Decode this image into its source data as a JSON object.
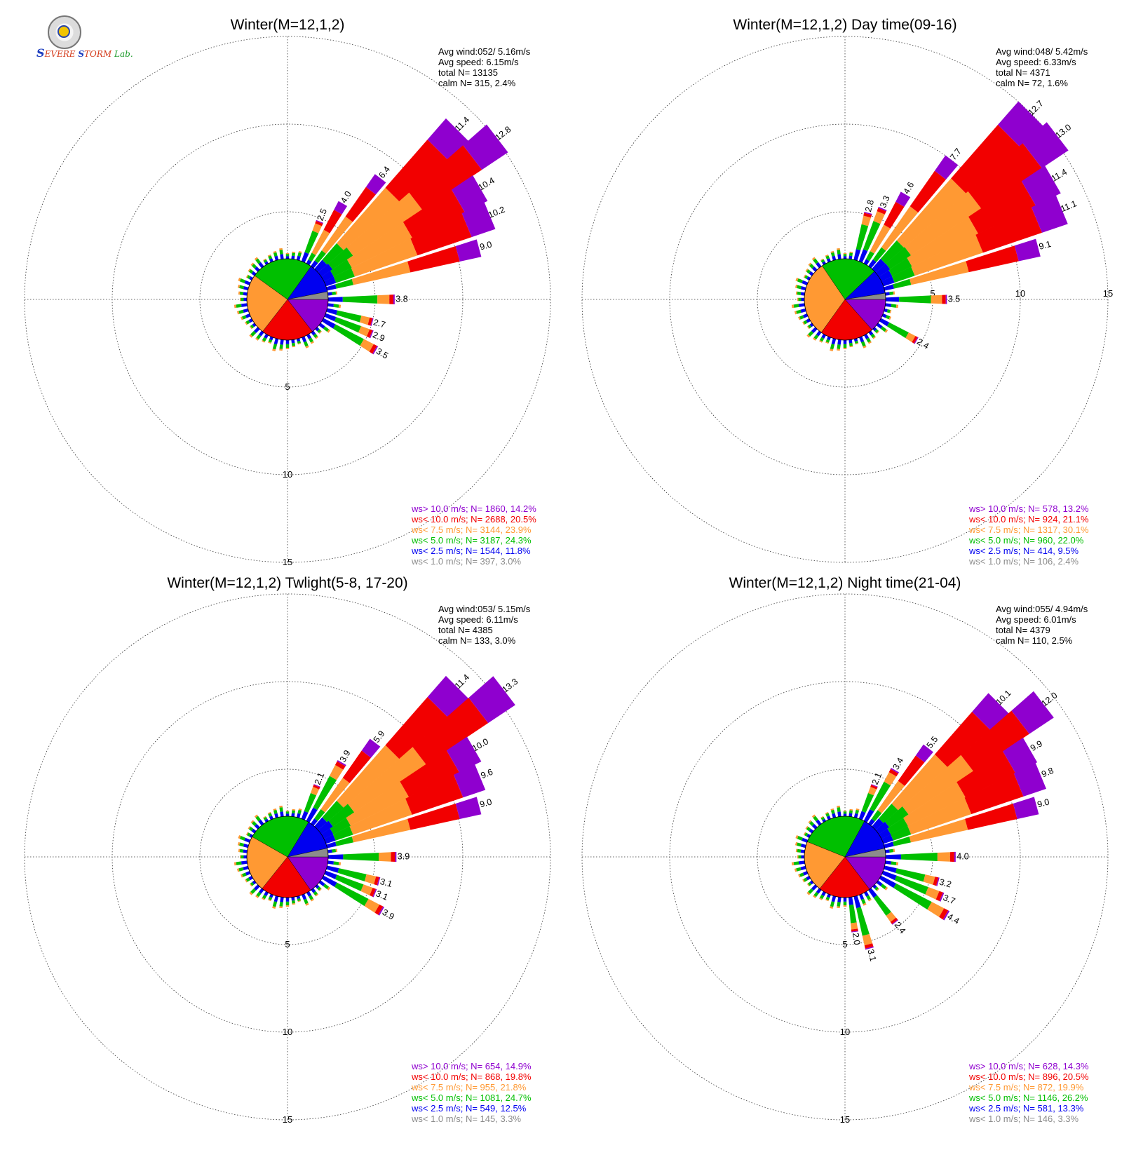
{
  "logo": {
    "big": "S",
    "severe": "EVERE",
    "storm": "TORM",
    "lab": "Lab."
  },
  "category_colors": [
    "#8f00cf",
    "#f20000",
    "#ff9933",
    "#00bf00",
    "#0000f0",
    "#8c8c8c"
  ],
  "chart_data": [
    {
      "type": "wind-rose",
      "title": "Winter(M=12,1,2)",
      "stats": [
        "Avg wind:052/ 5.16m/s",
        "Avg speed: 6.15m/s",
        "total N=       13135",
        "calm N=    315,   2.4%"
      ],
      "rings": [
        5,
        10,
        15
      ],
      "ring_labels_side": "bottom",
      "petals": [
        {
          "dir": 22.5,
          "label": "2.5",
          "total": 2.5
        },
        {
          "dir": 30,
          "label": "4.0",
          "total": 4.0
        },
        {
          "dir": 37.5,
          "label": "6.4",
          "total": 6.4
        },
        {
          "dir": 45,
          "label": "11.4",
          "total": 11.4
        },
        {
          "dir": 52.5,
          "label": "12.8",
          "total": 12.8
        },
        {
          "dir": 60,
          "label": "10.4",
          "total": 10.4
        },
        {
          "dir": 67.5,
          "label": "10.2",
          "total": 10.2
        },
        {
          "dir": 75,
          "label": "9.0",
          "total": 9.0
        },
        {
          "dir": 90,
          "label": "3.8",
          "total": 3.8
        },
        {
          "dir": 105,
          "label": "2.7",
          "total": 2.7
        },
        {
          "dir": 112.5,
          "label": "2.9",
          "total": 2.9
        },
        {
          "dir": 120,
          "label": "3.5",
          "total": 3.5
        }
      ],
      "legend": [
        "ws> 10.0 m/s; N=   1860,  14.2%",
        "ws< 10.0 m/s; N=   2688,  20.5%",
        "ws<  7.5 m/s; N=   3144,  23.9%",
        "ws<  5.0 m/s; N=   3187,  24.3%",
        "ws<  2.5 m/s; N=   1544,  11.8%",
        "ws<  1.0 m/s; N=    397,   3.0%"
      ],
      "speed_pie": [
        14.2,
        20.5,
        23.9,
        24.3,
        11.8,
        3.0
      ]
    },
    {
      "type": "wind-rose",
      "title": "Winter(M=12,1,2) Day time(09-16)",
      "stats": [
        "Avg wind:048/ 5.42m/s",
        "Avg speed: 6.33m/s",
        "total N=        4371",
        "calm N=     72,   1.6%"
      ],
      "rings": [
        5,
        10,
        15
      ],
      "ring_labels_side": "right",
      "petals": [
        {
          "dir": 15,
          "label": "2.8",
          "total": 2.8
        },
        {
          "dir": 22.5,
          "label": "3.3",
          "total": 3.3
        },
        {
          "dir": 30,
          "label": "4.6",
          "total": 4.6
        },
        {
          "dir": 37.5,
          "label": "7.7",
          "total": 7.7
        },
        {
          "dir": 45,
          "label": "12.7",
          "total": 12.7
        },
        {
          "dir": 52.5,
          "label": "13.0",
          "total": 13.0
        },
        {
          "dir": 60,
          "label": "11.4",
          "total": 11.4
        },
        {
          "dir": 67.5,
          "label": "11.1",
          "total": 11.1
        },
        {
          "dir": 75,
          "label": "9.1",
          "total": 9.1
        },
        {
          "dir": 90,
          "label": "3.5",
          "total": 3.5
        },
        {
          "dir": 120,
          "label": "2.4",
          "total": 2.4
        }
      ],
      "legend": [
        "ws> 10.0 m/s; N=    578,  13.2%",
        "ws< 10.0 m/s; N=    924,  21.1%",
        "ws<  7.5 m/s; N=   1317,  30.1%",
        "ws<  5.0 m/s; N=    960,  22.0%",
        "ws<  2.5 m/s; N=    414,   9.5%",
        "ws<  1.0 m/s; N=    106,   2.4%"
      ],
      "speed_pie": [
        13.2,
        21.1,
        30.1,
        22.0,
        9.5,
        2.4
      ]
    },
    {
      "type": "wind-rose",
      "title": "Winter(M=12,1,2) Twlight(5-8, 17-20)",
      "stats": [
        "Avg wind:053/ 5.15m/s",
        "Avg speed: 6.11m/s",
        "total N=        4385",
        "calm N=    133,   3.0%"
      ],
      "rings": [
        5,
        10,
        15
      ],
      "ring_labels_side": "bottom",
      "petals": [
        {
          "dir": 22.5,
          "label": "2.1",
          "total": 2.1
        },
        {
          "dir": 30,
          "label": "3.9",
          "total": 3.9
        },
        {
          "dir": 37.5,
          "label": "5.9",
          "total": 5.9
        },
        {
          "dir": 45,
          "label": "11.4",
          "total": 11.4
        },
        {
          "dir": 52.5,
          "label": "13.3",
          "total": 13.3
        },
        {
          "dir": 60,
          "label": "10.0",
          "total": 10.0
        },
        {
          "dir": 67.5,
          "label": "9.6",
          "total": 9.6
        },
        {
          "dir": 75,
          "label": "9.0",
          "total": 9.0
        },
        {
          "dir": 90,
          "label": "3.9",
          "total": 3.9
        },
        {
          "dir": 105,
          "label": "3.1",
          "total": 3.1
        },
        {
          "dir": 112.5,
          "label": "3.1",
          "total": 3.1
        },
        {
          "dir": 120,
          "label": "3.9",
          "total": 3.9
        }
      ],
      "legend": [
        "ws> 10.0 m/s; N=    654,  14.9%",
        "ws< 10.0 m/s; N=    868,  19.8%",
        "ws<  7.5 m/s; N=    955,  21.8%",
        "ws<  5.0 m/s; N=   1081,  24.7%",
        "ws<  2.5 m/s; N=    549,  12.5%",
        "ws<  1.0 m/s; N=    145,   3.3%"
      ],
      "speed_pie": [
        14.9,
        19.8,
        21.8,
        24.7,
        12.5,
        3.3
      ]
    },
    {
      "type": "wind-rose",
      "title": "Winter(M=12,1,2) Night time(21-04)",
      "stats": [
        "Avg wind:055/ 4.94m/s",
        "Avg speed: 6.01m/s",
        "total N=        4379",
        "calm N=    110,   2.5%"
      ],
      "rings": [
        5,
        10,
        15
      ],
      "ring_labels_side": "bottom",
      "petals": [
        {
          "dir": 22.5,
          "label": "2.1",
          "total": 2.1
        },
        {
          "dir": 30,
          "label": "3.4",
          "total": 3.4
        },
        {
          "dir": 37.5,
          "label": "5.5",
          "total": 5.5
        },
        {
          "dir": 45,
          "label": "10.1",
          "total": 10.1
        },
        {
          "dir": 52.5,
          "label": "12.0",
          "total": 12.0
        },
        {
          "dir": 60,
          "label": "9.9",
          "total": 9.9
        },
        {
          "dir": 67.5,
          "label": "9.8",
          "total": 9.8
        },
        {
          "dir": 75,
          "label": "9.0",
          "total": 9.0
        },
        {
          "dir": 90,
          "label": "4.0",
          "total": 4.0
        },
        {
          "dir": 105,
          "label": "3.2",
          "total": 3.2
        },
        {
          "dir": 112.5,
          "label": "3.7",
          "total": 3.7
        },
        {
          "dir": 120,
          "label": "4.4",
          "total": 4.4
        },
        {
          "dir": 142.5,
          "label": "2.4",
          "total": 2.4
        },
        {
          "dir": 165,
          "label": "3.1",
          "total": 3.1
        },
        {
          "dir": 172.5,
          "label": "2.0",
          "total": 2.0
        }
      ],
      "legend": [
        "ws> 10.0 m/s; N=    628,  14.3%",
        "ws< 10.0 m/s; N=    896,  20.5%",
        "ws<  7.5 m/s; N=    872,  19.9%",
        "ws<  5.0 m/s; N=   1146,  26.2%",
        "ws<  2.5 m/s; N=    581,  13.3%",
        "ws<  1.0 m/s; N=    146,   3.3%"
      ],
      "speed_pie": [
        14.3,
        20.5,
        19.9,
        26.2,
        13.3,
        3.3
      ]
    }
  ]
}
